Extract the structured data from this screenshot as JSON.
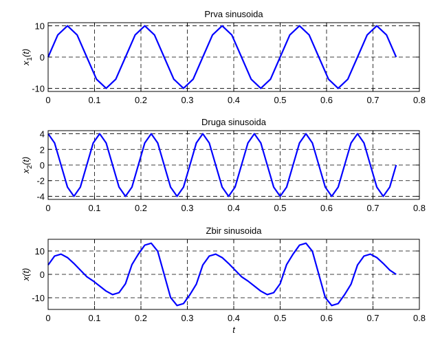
{
  "chart_data": [
    {
      "type": "line",
      "title": "Prva sinusoida",
      "ylabel_main": "x",
      "ylabel_sub": "1",
      "ylabel_suffix": "(t)",
      "xlabel": "",
      "xlim": [
        0,
        0.8
      ],
      "ylim": [
        -11,
        11
      ],
      "xticks": [
        0,
        0.1,
        0.2,
        0.3,
        0.4,
        0.5,
        0.6,
        0.7,
        0.8
      ],
      "xtick_labels": [
        "0",
        "0.1",
        "0.2",
        "0.3",
        "0.4",
        "0.5",
        "0.6",
        "0.7",
        "0.8"
      ],
      "yticks": [
        -10,
        0,
        10
      ],
      "ytick_labels": [
        "-10",
        "0",
        "10"
      ],
      "grid": true,
      "series": [
        {
          "color": "#0000ff",
          "x": [
            0,
            0.0208,
            0.0417,
            0.0625,
            0.0833,
            0.1042,
            0.125,
            0.1458,
            0.1667,
            0.1875,
            0.2083,
            0.2292,
            0.25,
            0.2708,
            0.2917,
            0.3125,
            0.3333,
            0.3542,
            0.375,
            0.3958,
            0.4167,
            0.4375,
            0.4583,
            0.4792,
            0.5,
            0.5208,
            0.5417,
            0.5625,
            0.5833,
            0.6042,
            0.625,
            0.6458,
            0.6667,
            0.6875,
            0.7083,
            0.7292,
            0.75
          ],
          "y": [
            0,
            7.07,
            10,
            7.07,
            0,
            -7.07,
            -10,
            -7.07,
            0,
            7.07,
            10,
            7.07,
            0,
            -7.07,
            -10,
            -7.07,
            0,
            7.07,
            10,
            7.07,
            0,
            -7.07,
            -10,
            -7.07,
            0,
            7.07,
            10,
            7.07,
            0,
            -7.07,
            -10,
            -7.07,
            0,
            7.07,
            10,
            7.07,
            0
          ]
        }
      ]
    },
    {
      "type": "line",
      "title": "Druga sinusoida",
      "ylabel_main": "x",
      "ylabel_sub": "2",
      "ylabel_suffix": "(t)",
      "xlabel": "",
      "xlim": [
        0,
        0.8
      ],
      "ylim": [
        -4.4,
        4.4
      ],
      "xticks": [
        0,
        0.1,
        0.2,
        0.3,
        0.4,
        0.5,
        0.6,
        0.7,
        0.8
      ],
      "xtick_labels": [
        "0",
        "0.1",
        "0.2",
        "0.3",
        "0.4",
        "0.5",
        "0.6",
        "0.7",
        "0.8"
      ],
      "yticks": [
        -4,
        -2,
        0,
        2,
        4
      ],
      "ytick_labels": [
        "-4",
        "-2",
        "0",
        "2",
        "4"
      ],
      "grid": true,
      "series": [
        {
          "color": "#0000ff",
          "x": [
            0,
            0.0139,
            0.0278,
            0.0417,
            0.0556,
            0.0694,
            0.0833,
            0.0972,
            0.1111,
            0.125,
            0.1389,
            0.1528,
            0.1667,
            0.1806,
            0.1944,
            0.2083,
            0.2222,
            0.2361,
            0.25,
            0.2639,
            0.2778,
            0.2917,
            0.3056,
            0.3194,
            0.3333,
            0.3472,
            0.3611,
            0.375,
            0.3889,
            0.4028,
            0.4167,
            0.4306,
            0.4444,
            0.4583,
            0.4722,
            0.4861,
            0.5,
            0.5139,
            0.5278,
            0.5417,
            0.5556,
            0.5694,
            0.5833,
            0.5972,
            0.6111,
            0.625,
            0.6389,
            0.6528,
            0.6667,
            0.6806,
            0.6944,
            0.7083,
            0.7222,
            0.7361,
            0.75
          ],
          "y": [
            4,
            2.83,
            0,
            -2.83,
            -4,
            -2.83,
            0,
            2.83,
            4,
            2.83,
            0,
            -2.83,
            -4,
            -2.83,
            0,
            2.83,
            4,
            2.83,
            0,
            -2.83,
            -4,
            -2.83,
            0,
            2.83,
            4,
            2.83,
            0,
            -2.83,
            -4,
            -2.83,
            0,
            2.83,
            4,
            2.83,
            0,
            -2.83,
            -4,
            -2.83,
            0,
            2.83,
            4,
            2.83,
            0,
            -2.83,
            -4,
            -2.83,
            0,
            2.83,
            4,
            2.83,
            0,
            -2.83,
            -4,
            -2.83,
            0
          ]
        }
      ]
    },
    {
      "type": "line",
      "title": "Zbir sinusoida",
      "ylabel_main": "x",
      "ylabel_sub": "",
      "ylabel_suffix": "(t)",
      "xlabel": "t",
      "xlim": [
        0,
        0.8
      ],
      "ylim": [
        -15,
        15
      ],
      "xticks": [
        0,
        0.1,
        0.2,
        0.3,
        0.4,
        0.5,
        0.6,
        0.7,
        0.8
      ],
      "xtick_labels": [
        "0",
        "0.1",
        "0.2",
        "0.3",
        "0.4",
        "0.5",
        "0.6",
        "0.7",
        "0.8"
      ],
      "yticks": [
        -10,
        0,
        10
      ],
      "ytick_labels": [
        "-10",
        "0",
        "10"
      ],
      "grid": true,
      "series": [
        {
          "color": "#0000ff",
          "x": [
            0,
            0.0139,
            0.0278,
            0.0417,
            0.0556,
            0.0694,
            0.0833,
            0.0972,
            0.1111,
            0.125,
            0.1389,
            0.1528,
            0.1667,
            0.1806,
            0.1944,
            0.2083,
            0.2222,
            0.2361,
            0.25,
            0.2639,
            0.2778,
            0.2917,
            0.3056,
            0.3194,
            0.3333,
            0.3472,
            0.3611,
            0.375,
            0.3889,
            0.4028,
            0.4167,
            0.4306,
            0.4444,
            0.4583,
            0.4722,
            0.4861,
            0.5,
            0.5139,
            0.5278,
            0.5417,
            0.5556,
            0.5694,
            0.5833,
            0.5972,
            0.6111,
            0.625,
            0.6389,
            0.6528,
            0.6667,
            0.6806,
            0.6944,
            0.7083,
            0.7222,
            0.7361,
            0.75
          ],
          "y": [
            4,
            7.83,
            8.66,
            7.17,
            4.66,
            1.83,
            -1.0,
            -2.85,
            -5.0,
            -7.16,
            -8.66,
            -7.83,
            -4.0,
            4.17,
            8.66,
            12.5,
            13.32,
            9.9,
            0,
            -9.9,
            -13.32,
            -12.5,
            -8.66,
            -4.17,
            4,
            7.83,
            8.66,
            7.17,
            4.66,
            1.83,
            -1.0,
            -2.85,
            -5.0,
            -7.16,
            -8.66,
            -7.83,
            -4.0,
            4.17,
            8.66,
            12.5,
            13.32,
            9.9,
            0,
            -9.9,
            -13.32,
            -12.5,
            -8.66,
            -4.17,
            4,
            7.83,
            8.66,
            7.17,
            4.66,
            1.83,
            0
          ]
        }
      ]
    }
  ]
}
